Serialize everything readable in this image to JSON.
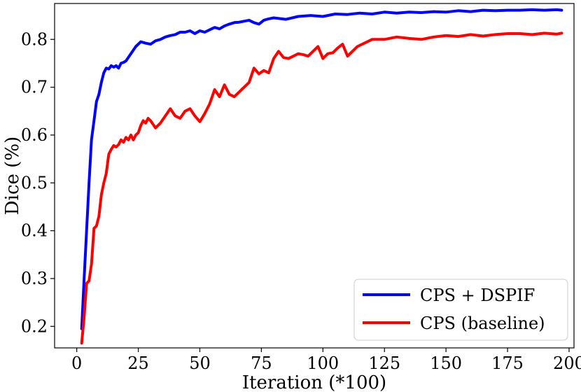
{
  "chart_data": {
    "type": "line",
    "title": "",
    "xlabel": "Iteration (*100)",
    "ylabel": "Dice (%)",
    "xlim": [
      -9,
      202
    ],
    "ylim": [
      0.155,
      0.875
    ],
    "xticks": [
      0,
      25,
      50,
      75,
      100,
      125,
      150,
      175,
      200
    ],
    "yticks": [
      0.2,
      0.3,
      0.4,
      0.5,
      0.6,
      0.7,
      0.8
    ],
    "grid": false,
    "legend_position": "lower-right",
    "series": [
      {
        "name": "CPS + DSPIF",
        "color": "#0000ff",
        "x": [
          2,
          3,
          4,
          5,
          6,
          7,
          8,
          9,
          10,
          11,
          12,
          13,
          14,
          15,
          16,
          17,
          18,
          19,
          20,
          22,
          24,
          26,
          28,
          30,
          32,
          34,
          36,
          38,
          40,
          42,
          44,
          46,
          48,
          50,
          52,
          54,
          56,
          58,
          60,
          62,
          64,
          66,
          68,
          70,
          72,
          74,
          76,
          78,
          80,
          85,
          90,
          95,
          100,
          105,
          110,
          115,
          120,
          125,
          130,
          135,
          140,
          145,
          150,
          155,
          160,
          165,
          170,
          175,
          180,
          185,
          190,
          195,
          197
        ],
        "y": [
          0.195,
          0.3,
          0.4,
          0.5,
          0.59,
          0.63,
          0.67,
          0.685,
          0.71,
          0.73,
          0.74,
          0.738,
          0.745,
          0.742,
          0.745,
          0.74,
          0.75,
          0.752,
          0.755,
          0.77,
          0.785,
          0.795,
          0.792,
          0.79,
          0.797,
          0.8,
          0.805,
          0.808,
          0.81,
          0.815,
          0.815,
          0.818,
          0.812,
          0.818,
          0.815,
          0.82,
          0.825,
          0.822,
          0.828,
          0.832,
          0.835,
          0.836,
          0.838,
          0.84,
          0.835,
          0.832,
          0.84,
          0.843,
          0.845,
          0.842,
          0.848,
          0.85,
          0.848,
          0.853,
          0.852,
          0.855,
          0.853,
          0.857,
          0.855,
          0.857,
          0.856,
          0.858,
          0.857,
          0.86,
          0.858,
          0.861,
          0.86,
          0.861,
          0.861,
          0.862,
          0.861,
          0.862,
          0.861
        ]
      },
      {
        "name": "CPS (baseline)",
        "color": "#ff0000",
        "x": [
          2,
          3,
          4,
          5,
          6,
          7,
          8,
          9,
          10,
          11,
          12,
          13,
          14,
          15,
          16,
          17,
          18,
          19,
          20,
          21,
          22,
          23,
          24,
          25,
          26,
          27,
          28,
          29,
          30,
          32,
          34,
          36,
          38,
          40,
          42,
          44,
          46,
          48,
          50,
          52,
          54,
          56,
          58,
          60,
          62,
          64,
          66,
          68,
          70,
          72,
          74,
          76,
          78,
          80,
          82,
          84,
          86,
          88,
          90,
          92,
          94,
          96,
          98,
          100,
          102,
          104,
          106,
          108,
          110,
          112,
          114,
          116,
          118,
          120,
          125,
          130,
          135,
          140,
          145,
          150,
          155,
          160,
          165,
          170,
          175,
          180,
          185,
          190,
          195,
          197
        ],
        "y": [
          0.165,
          0.22,
          0.29,
          0.295,
          0.33,
          0.405,
          0.41,
          0.43,
          0.475,
          0.5,
          0.52,
          0.56,
          0.57,
          0.578,
          0.575,
          0.58,
          0.59,
          0.585,
          0.595,
          0.59,
          0.6,
          0.59,
          0.6,
          0.605,
          0.62,
          0.63,
          0.625,
          0.635,
          0.63,
          0.615,
          0.625,
          0.64,
          0.655,
          0.64,
          0.635,
          0.65,
          0.655,
          0.64,
          0.628,
          0.645,
          0.665,
          0.695,
          0.68,
          0.705,
          0.685,
          0.68,
          0.69,
          0.7,
          0.71,
          0.74,
          0.728,
          0.735,
          0.73,
          0.76,
          0.775,
          0.762,
          0.76,
          0.765,
          0.77,
          0.768,
          0.765,
          0.775,
          0.785,
          0.76,
          0.77,
          0.772,
          0.782,
          0.79,
          0.765,
          0.775,
          0.785,
          0.79,
          0.795,
          0.8,
          0.8,
          0.805,
          0.802,
          0.8,
          0.805,
          0.808,
          0.806,
          0.81,
          0.807,
          0.81,
          0.812,
          0.812,
          0.81,
          0.813,
          0.811,
          0.813
        ]
      }
    ]
  }
}
